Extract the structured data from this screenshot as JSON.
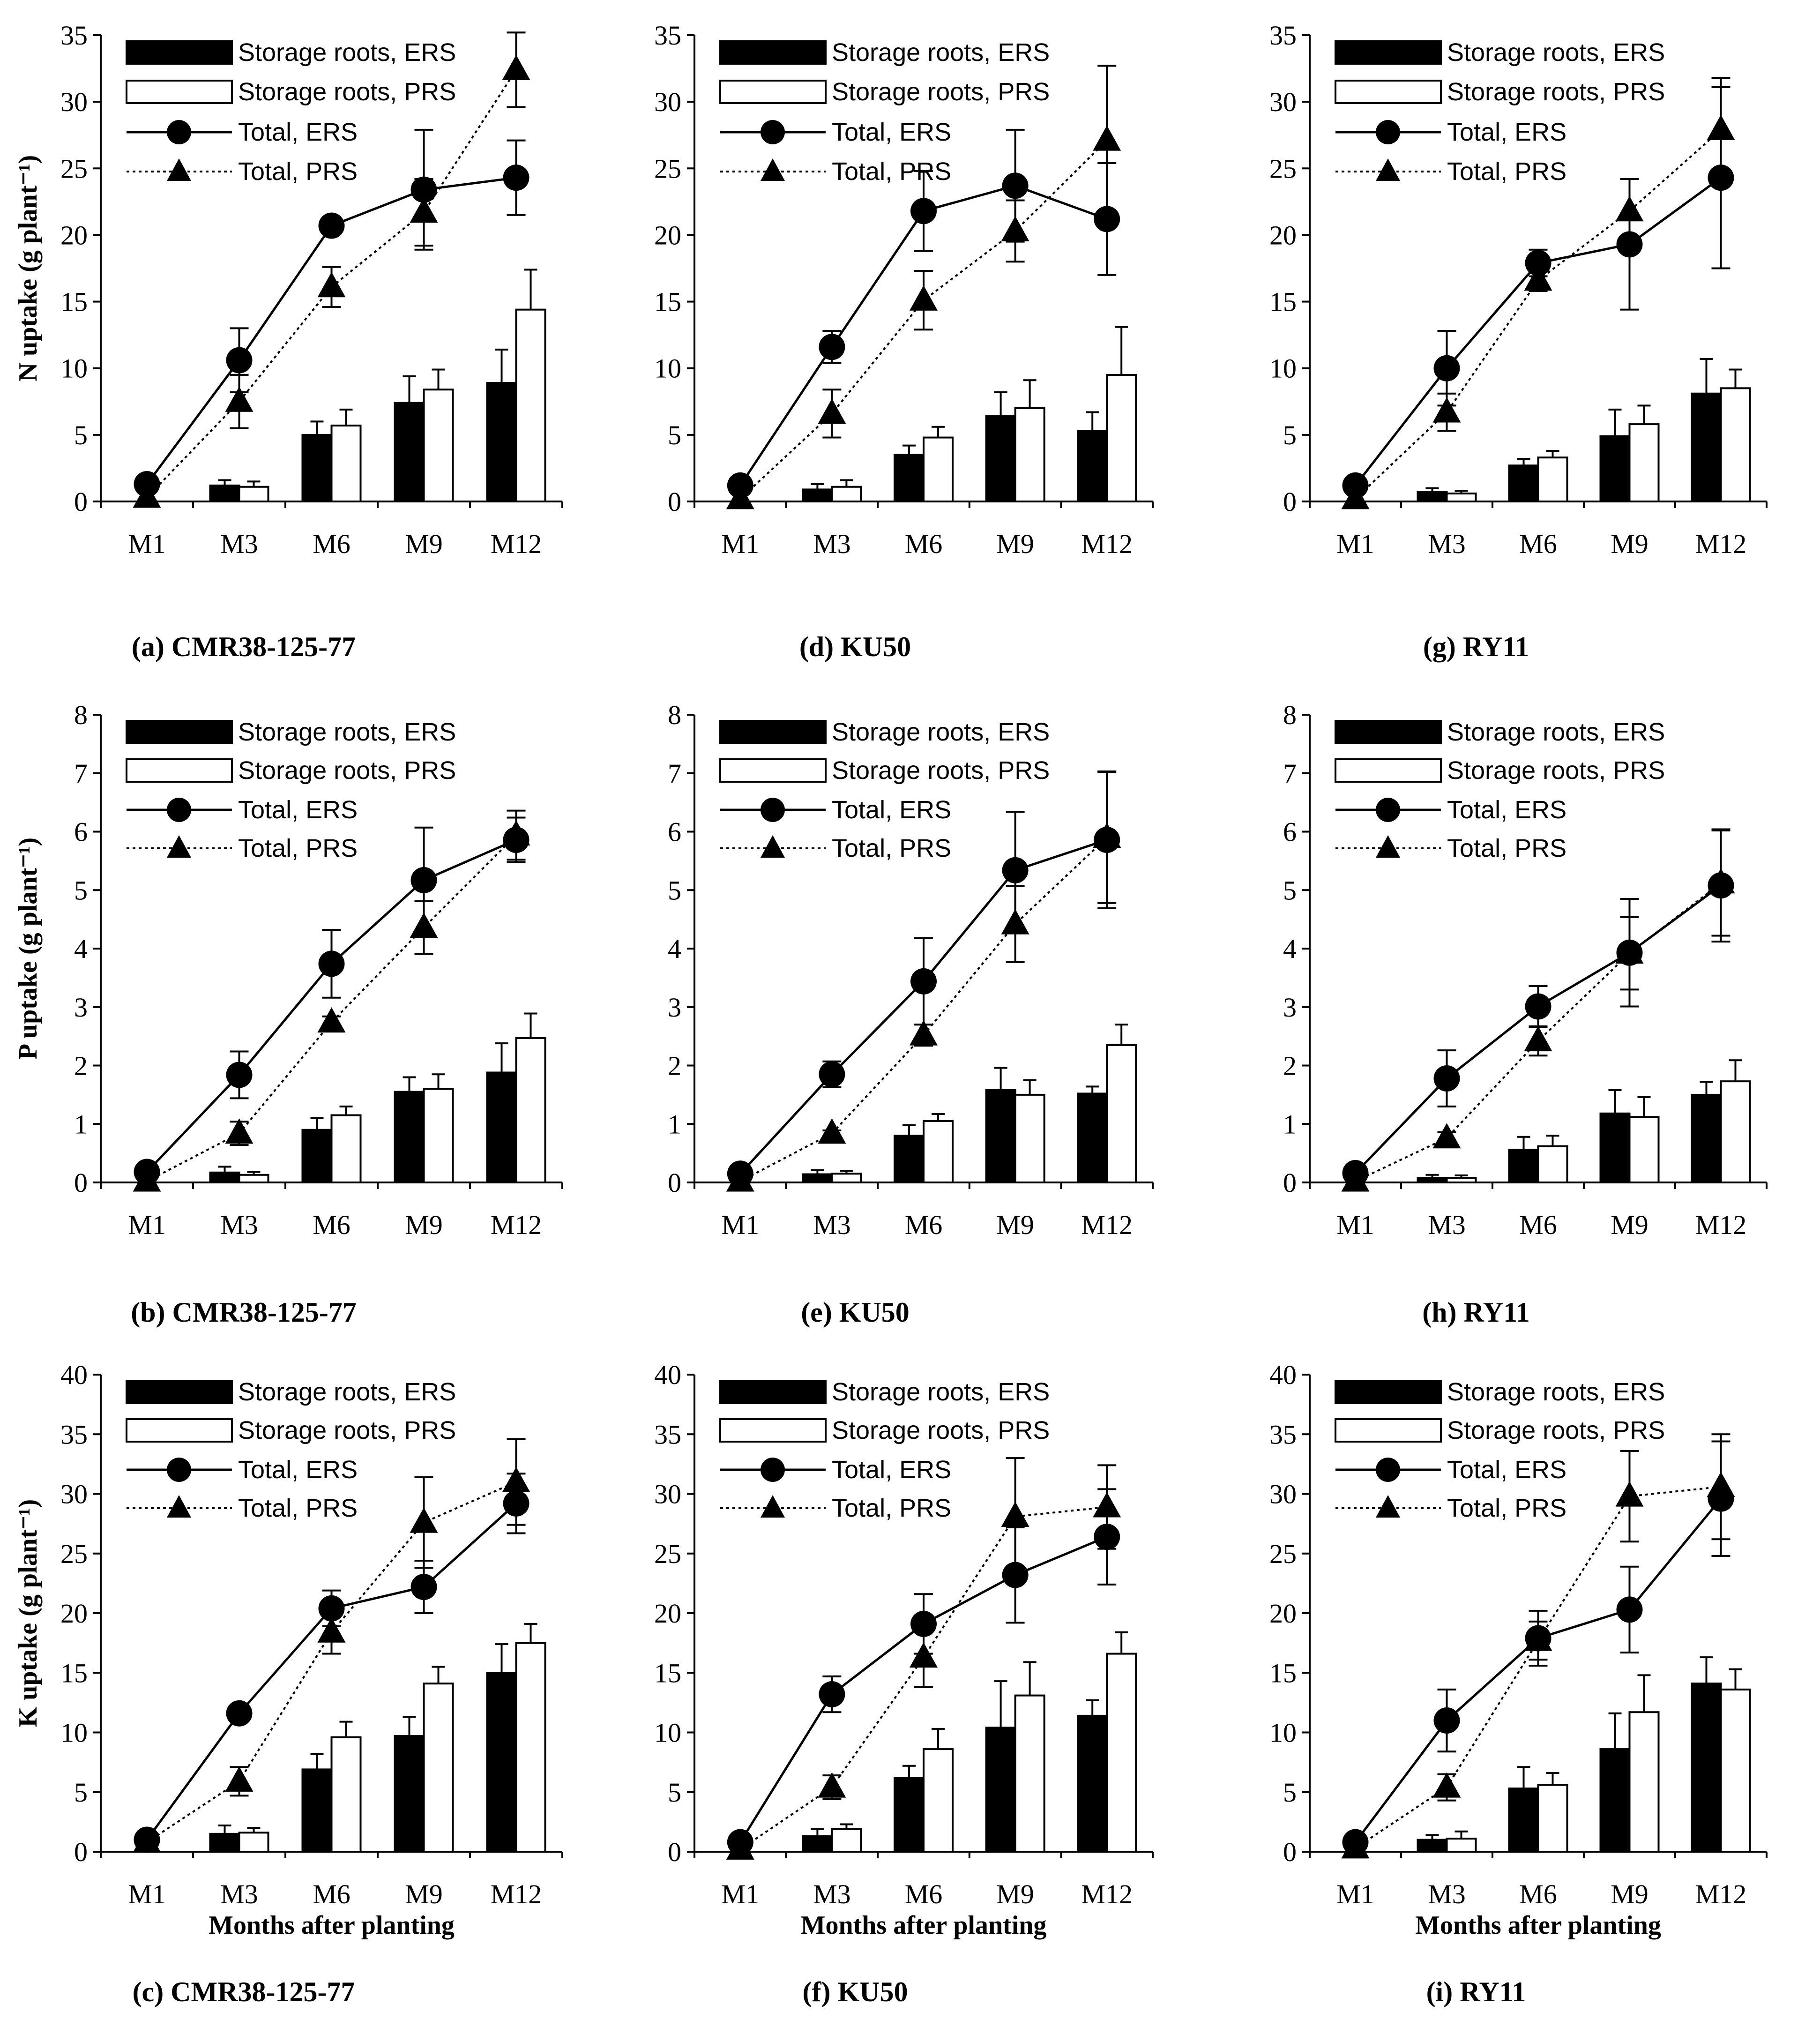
{
  "colors": {
    "ers": "#000000",
    "prs": "#ffffff",
    "axis": "#000000",
    "text": "#000000"
  },
  "legend": [
    "Storage roots, ERS",
    "Storage roots, PRS",
    "Total, ERS",
    "Total, PRS"
  ],
  "chart_data": [
    {
      "type": "bar",
      "id": "a",
      "caption": "(a) CMR38-125-77",
      "ylabel": "N uptake (g plant⁻¹)",
      "xlabel": "",
      "categories": [
        "M1",
        "M3",
        "M6",
        "M9",
        "M12"
      ],
      "ylim": [
        0,
        35
      ],
      "ystep": 5,
      "series": [
        {
          "name": "Storage roots, ERS",
          "kind": "bar",
          "values": [
            0,
            1.2,
            5.0,
            7.4,
            8.9
          ],
          "err": [
            0,
            0.4,
            1.0,
            2.0,
            2.5
          ]
        },
        {
          "name": "Storage roots, PRS",
          "kind": "bar",
          "values": [
            0,
            1.1,
            5.7,
            8.4,
            14.4
          ],
          "err": [
            0,
            0.4,
            1.2,
            1.5,
            3.0
          ]
        },
        {
          "name": "Total, ERS",
          "kind": "line",
          "values": [
            1.3,
            10.6,
            20.7,
            23.4,
            24.3
          ],
          "err": [
            0,
            2.4,
            0,
            4.5,
            2.8
          ]
        },
        {
          "name": "Total, PRS",
          "kind": "line",
          "values": [
            0.3,
            7.5,
            16.1,
            21.7,
            32.4
          ],
          "err": [
            0,
            2.0,
            1.5,
            2.5,
            2.8
          ]
        }
      ]
    },
    {
      "type": "bar",
      "id": "d",
      "caption": "(d) KU50",
      "ylabel": "",
      "xlabel": "",
      "categories": [
        "M1",
        "M3",
        "M6",
        "M9",
        "M12"
      ],
      "ylim": [
        0,
        35
      ],
      "ystep": 5,
      "series": [
        {
          "name": "Storage roots, ERS",
          "kind": "bar",
          "values": [
            0,
            0.9,
            3.5,
            6.4,
            5.3
          ],
          "err": [
            0,
            0.4,
            0.7,
            1.8,
            1.4
          ]
        },
        {
          "name": "Storage roots, PRS",
          "kind": "bar",
          "values": [
            0,
            1.1,
            4.8,
            7.0,
            9.5
          ],
          "err": [
            0,
            0.5,
            0.8,
            2.1,
            3.6
          ]
        },
        {
          "name": "Total, ERS",
          "kind": "line",
          "values": [
            1.2,
            11.6,
            21.8,
            23.7,
            21.2
          ],
          "err": [
            0,
            1.2,
            3.0,
            4.2,
            4.2
          ]
        },
        {
          "name": "Total, PRS",
          "kind": "line",
          "values": [
            0.2,
            6.6,
            15.1,
            20.3,
            27.1
          ],
          "err": [
            0,
            1.8,
            2.2,
            2.3,
            5.6
          ]
        }
      ]
    },
    {
      "type": "bar",
      "id": "g",
      "caption": "(g) RY11",
      "ylabel": "",
      "xlabel": "",
      "categories": [
        "M1",
        "M3",
        "M6",
        "M9",
        "M12"
      ],
      "ylim": [
        0,
        35
      ],
      "ystep": 5,
      "series": [
        {
          "name": "Storage roots, ERS",
          "kind": "bar",
          "values": [
            0,
            0.7,
            2.7,
            4.9,
            8.1
          ],
          "err": [
            0,
            0.3,
            0.5,
            2.0,
            2.6
          ]
        },
        {
          "name": "Storage roots, PRS",
          "kind": "bar",
          "values": [
            0,
            0.6,
            3.3,
            5.8,
            8.5
          ],
          "err": [
            0,
            0.2,
            0.5,
            1.4,
            1.4
          ]
        },
        {
          "name": "Total, ERS",
          "kind": "line",
          "values": [
            1.2,
            10.0,
            17.9,
            19.3,
            24.3
          ],
          "err": [
            0,
            2.8,
            1.0,
            4.9,
            6.8
          ]
        },
        {
          "name": "Total, PRS",
          "kind": "line",
          "values": [
            0.2,
            6.7,
            16.6,
            21.8,
            27.9
          ],
          "err": [
            0,
            1.4,
            0.8,
            2.4,
            3.9
          ]
        }
      ]
    },
    {
      "type": "bar",
      "id": "b",
      "caption": "(b) CMR38-125-77",
      "ylabel": "P  uptake (g plant⁻¹)",
      "xlabel": "",
      "categories": [
        "M1",
        "M3",
        "M6",
        "M9",
        "M12"
      ],
      "ylim": [
        0,
        8
      ],
      "ystep": 1,
      "series": [
        {
          "name": "Storage roots, ERS",
          "kind": "bar",
          "values": [
            0,
            0.17,
            0.9,
            1.55,
            1.88
          ],
          "err": [
            0,
            0.1,
            0.2,
            0.25,
            0.5
          ]
        },
        {
          "name": "Storage roots, PRS",
          "kind": "bar",
          "values": [
            0,
            0.13,
            1.15,
            1.6,
            2.47
          ],
          "err": [
            0,
            0.05,
            0.15,
            0.25,
            0.42
          ]
        },
        {
          "name": "Total, ERS",
          "kind": "line",
          "values": [
            0.18,
            1.84,
            3.74,
            5.17,
            5.86
          ],
          "err": [
            0,
            0.4,
            0.58,
            0.9,
            0.38
          ]
        },
        {
          "name": "Total, PRS",
          "kind": "line",
          "values": [
            0.02,
            0.84,
            2.74,
            4.36,
            5.94
          ],
          "err": [
            0,
            0.2,
            0.1,
            0.45,
            0.42
          ]
        }
      ]
    },
    {
      "type": "bar",
      "id": "e",
      "caption": "(e) KU50",
      "ylabel": "",
      "xlabel": "",
      "categories": [
        "M1",
        "M3",
        "M6",
        "M9",
        "M12"
      ],
      "ylim": [
        0,
        8
      ],
      "ystep": 1,
      "series": [
        {
          "name": "Storage roots, ERS",
          "kind": "bar",
          "values": [
            0,
            0.14,
            0.8,
            1.58,
            1.52
          ],
          "err": [
            0,
            0.07,
            0.18,
            0.38,
            0.12
          ]
        },
        {
          "name": "Storage roots, PRS",
          "kind": "bar",
          "values": [
            0,
            0.15,
            1.05,
            1.5,
            2.35
          ],
          "err": [
            0,
            0.05,
            0.12,
            0.25,
            0.35
          ]
        },
        {
          "name": "Total, ERS",
          "kind": "line",
          "values": [
            0.15,
            1.85,
            3.44,
            5.34,
            5.86
          ],
          "err": [
            0,
            0.22,
            0.74,
            1.0,
            1.17
          ]
        },
        {
          "name": "Total, PRS",
          "kind": "line",
          "values": [
            0.02,
            0.84,
            2.52,
            4.42,
            5.9
          ],
          "err": [
            0,
            0.05,
            0.18,
            0.65,
            1.12
          ]
        }
      ]
    },
    {
      "type": "bar",
      "id": "h",
      "caption": "(h) RY11",
      "ylabel": "",
      "xlabel": "",
      "categories": [
        "M1",
        "M3",
        "M6",
        "M9",
        "M12"
      ],
      "ylim": [
        0,
        8
      ],
      "ystep": 1,
      "series": [
        {
          "name": "Storage roots, ERS",
          "kind": "bar",
          "values": [
            0,
            0.08,
            0.56,
            1.18,
            1.5
          ],
          "err": [
            0,
            0.05,
            0.22,
            0.4,
            0.22
          ]
        },
        {
          "name": "Storage roots, PRS",
          "kind": "bar",
          "values": [
            0,
            0.08,
            0.62,
            1.12,
            1.73
          ],
          "err": [
            0,
            0.04,
            0.18,
            0.34,
            0.36
          ]
        },
        {
          "name": "Total, ERS",
          "kind": "line",
          "values": [
            0.16,
            1.78,
            3.01,
            3.93,
            5.08
          ],
          "err": [
            0,
            0.48,
            0.35,
            0.92,
            0.96
          ]
        },
        {
          "name": "Total, PRS",
          "kind": "line",
          "values": [
            0.02,
            0.76,
            2.42,
            3.92,
            5.12
          ],
          "err": [
            0,
            0.1,
            0.25,
            0.62,
            0.9
          ]
        }
      ]
    },
    {
      "type": "bar",
      "id": "c",
      "caption": "(c) CMR38-125-77",
      "ylabel": "K uptake  (g plant⁻¹)",
      "xlabel": "Months after planting",
      "categories": [
        "M1",
        "M3",
        "M6",
        "M9",
        "M12"
      ],
      "ylim": [
        0,
        40
      ],
      "ystep": 5,
      "series": [
        {
          "name": "Storage roots, ERS",
          "kind": "bar",
          "values": [
            0,
            1.5,
            6.9,
            9.7,
            15.0
          ],
          "err": [
            0,
            0.7,
            1.3,
            1.6,
            2.4
          ]
        },
        {
          "name": "Storage roots, PRS",
          "kind": "bar",
          "values": [
            0,
            1.6,
            9.6,
            14.1,
            17.5
          ],
          "err": [
            0,
            0.4,
            1.3,
            1.4,
            1.6
          ]
        },
        {
          "name": "Total, ERS",
          "kind": "line",
          "values": [
            1.0,
            11.6,
            20.4,
            22.2,
            29.2
          ],
          "err": [
            0,
            0,
            1.5,
            2.2,
            2.5
          ]
        },
        {
          "name": "Total, PRS",
          "kind": "line",
          "values": [
            0.8,
            5.9,
            18.4,
            27.6,
            31.0
          ],
          "err": [
            0,
            1.2,
            1.8,
            3.8,
            3.6
          ]
        }
      ]
    },
    {
      "type": "bar",
      "id": "f",
      "caption": "(f) KU50",
      "ylabel": "",
      "xlabel": "Months after planting",
      "categories": [
        "M1",
        "M3",
        "M6",
        "M9",
        "M12"
      ],
      "ylim": [
        0,
        40
      ],
      "ystep": 5,
      "series": [
        {
          "name": "Storage roots, ERS",
          "kind": "bar",
          "values": [
            0,
            1.3,
            6.2,
            10.4,
            11.4
          ],
          "err": [
            0,
            0.6,
            1.0,
            3.9,
            1.3
          ]
        },
        {
          "name": "Storage roots, PRS",
          "kind": "bar",
          "values": [
            0,
            1.9,
            8.6,
            13.1,
            16.6
          ],
          "err": [
            0,
            0.4,
            1.7,
            2.8,
            1.8
          ]
        },
        {
          "name": "Total, ERS",
          "kind": "line",
          "values": [
            0.8,
            13.2,
            19.1,
            23.2,
            26.4
          ],
          "err": [
            0,
            1.5,
            2.5,
            4.0,
            4.0
          ]
        },
        {
          "name": "Total, PRS",
          "kind": "line",
          "values": [
            0.2,
            5.4,
            16.3,
            28.1,
            28.9
          ],
          "err": [
            0,
            1.0,
            2.5,
            4.9,
            3.5
          ]
        }
      ]
    },
    {
      "type": "bar",
      "id": "i",
      "caption": "(i) RY11",
      "ylabel": "",
      "xlabel": "Months after planting",
      "categories": [
        "M1",
        "M3",
        "M6",
        "M9",
        "M12"
      ],
      "ylim": [
        0,
        40
      ],
      "ystep": 5,
      "series": [
        {
          "name": "Storage roots, ERS",
          "kind": "bar",
          "values": [
            0,
            1.0,
            5.3,
            8.6,
            14.1
          ],
          "err": [
            0,
            0.4,
            1.8,
            3.0,
            2.2
          ]
        },
        {
          "name": "Storage roots, PRS",
          "kind": "bar",
          "values": [
            0,
            1.1,
            5.6,
            11.7,
            13.6
          ],
          "err": [
            0,
            0.6,
            1.0,
            3.1,
            1.7
          ]
        },
        {
          "name": "Total, ERS",
          "kind": "line",
          "values": [
            0.8,
            11.0,
            17.9,
            20.3,
            29.6
          ],
          "err": [
            0,
            2.6,
            2.3,
            3.6,
            4.8
          ]
        },
        {
          "name": "Total, PRS",
          "kind": "line",
          "values": [
            0.3,
            5.4,
            17.7,
            29.8,
            30.6
          ],
          "err": [
            0,
            1.1,
            1.6,
            3.8,
            4.4
          ]
        }
      ]
    }
  ]
}
